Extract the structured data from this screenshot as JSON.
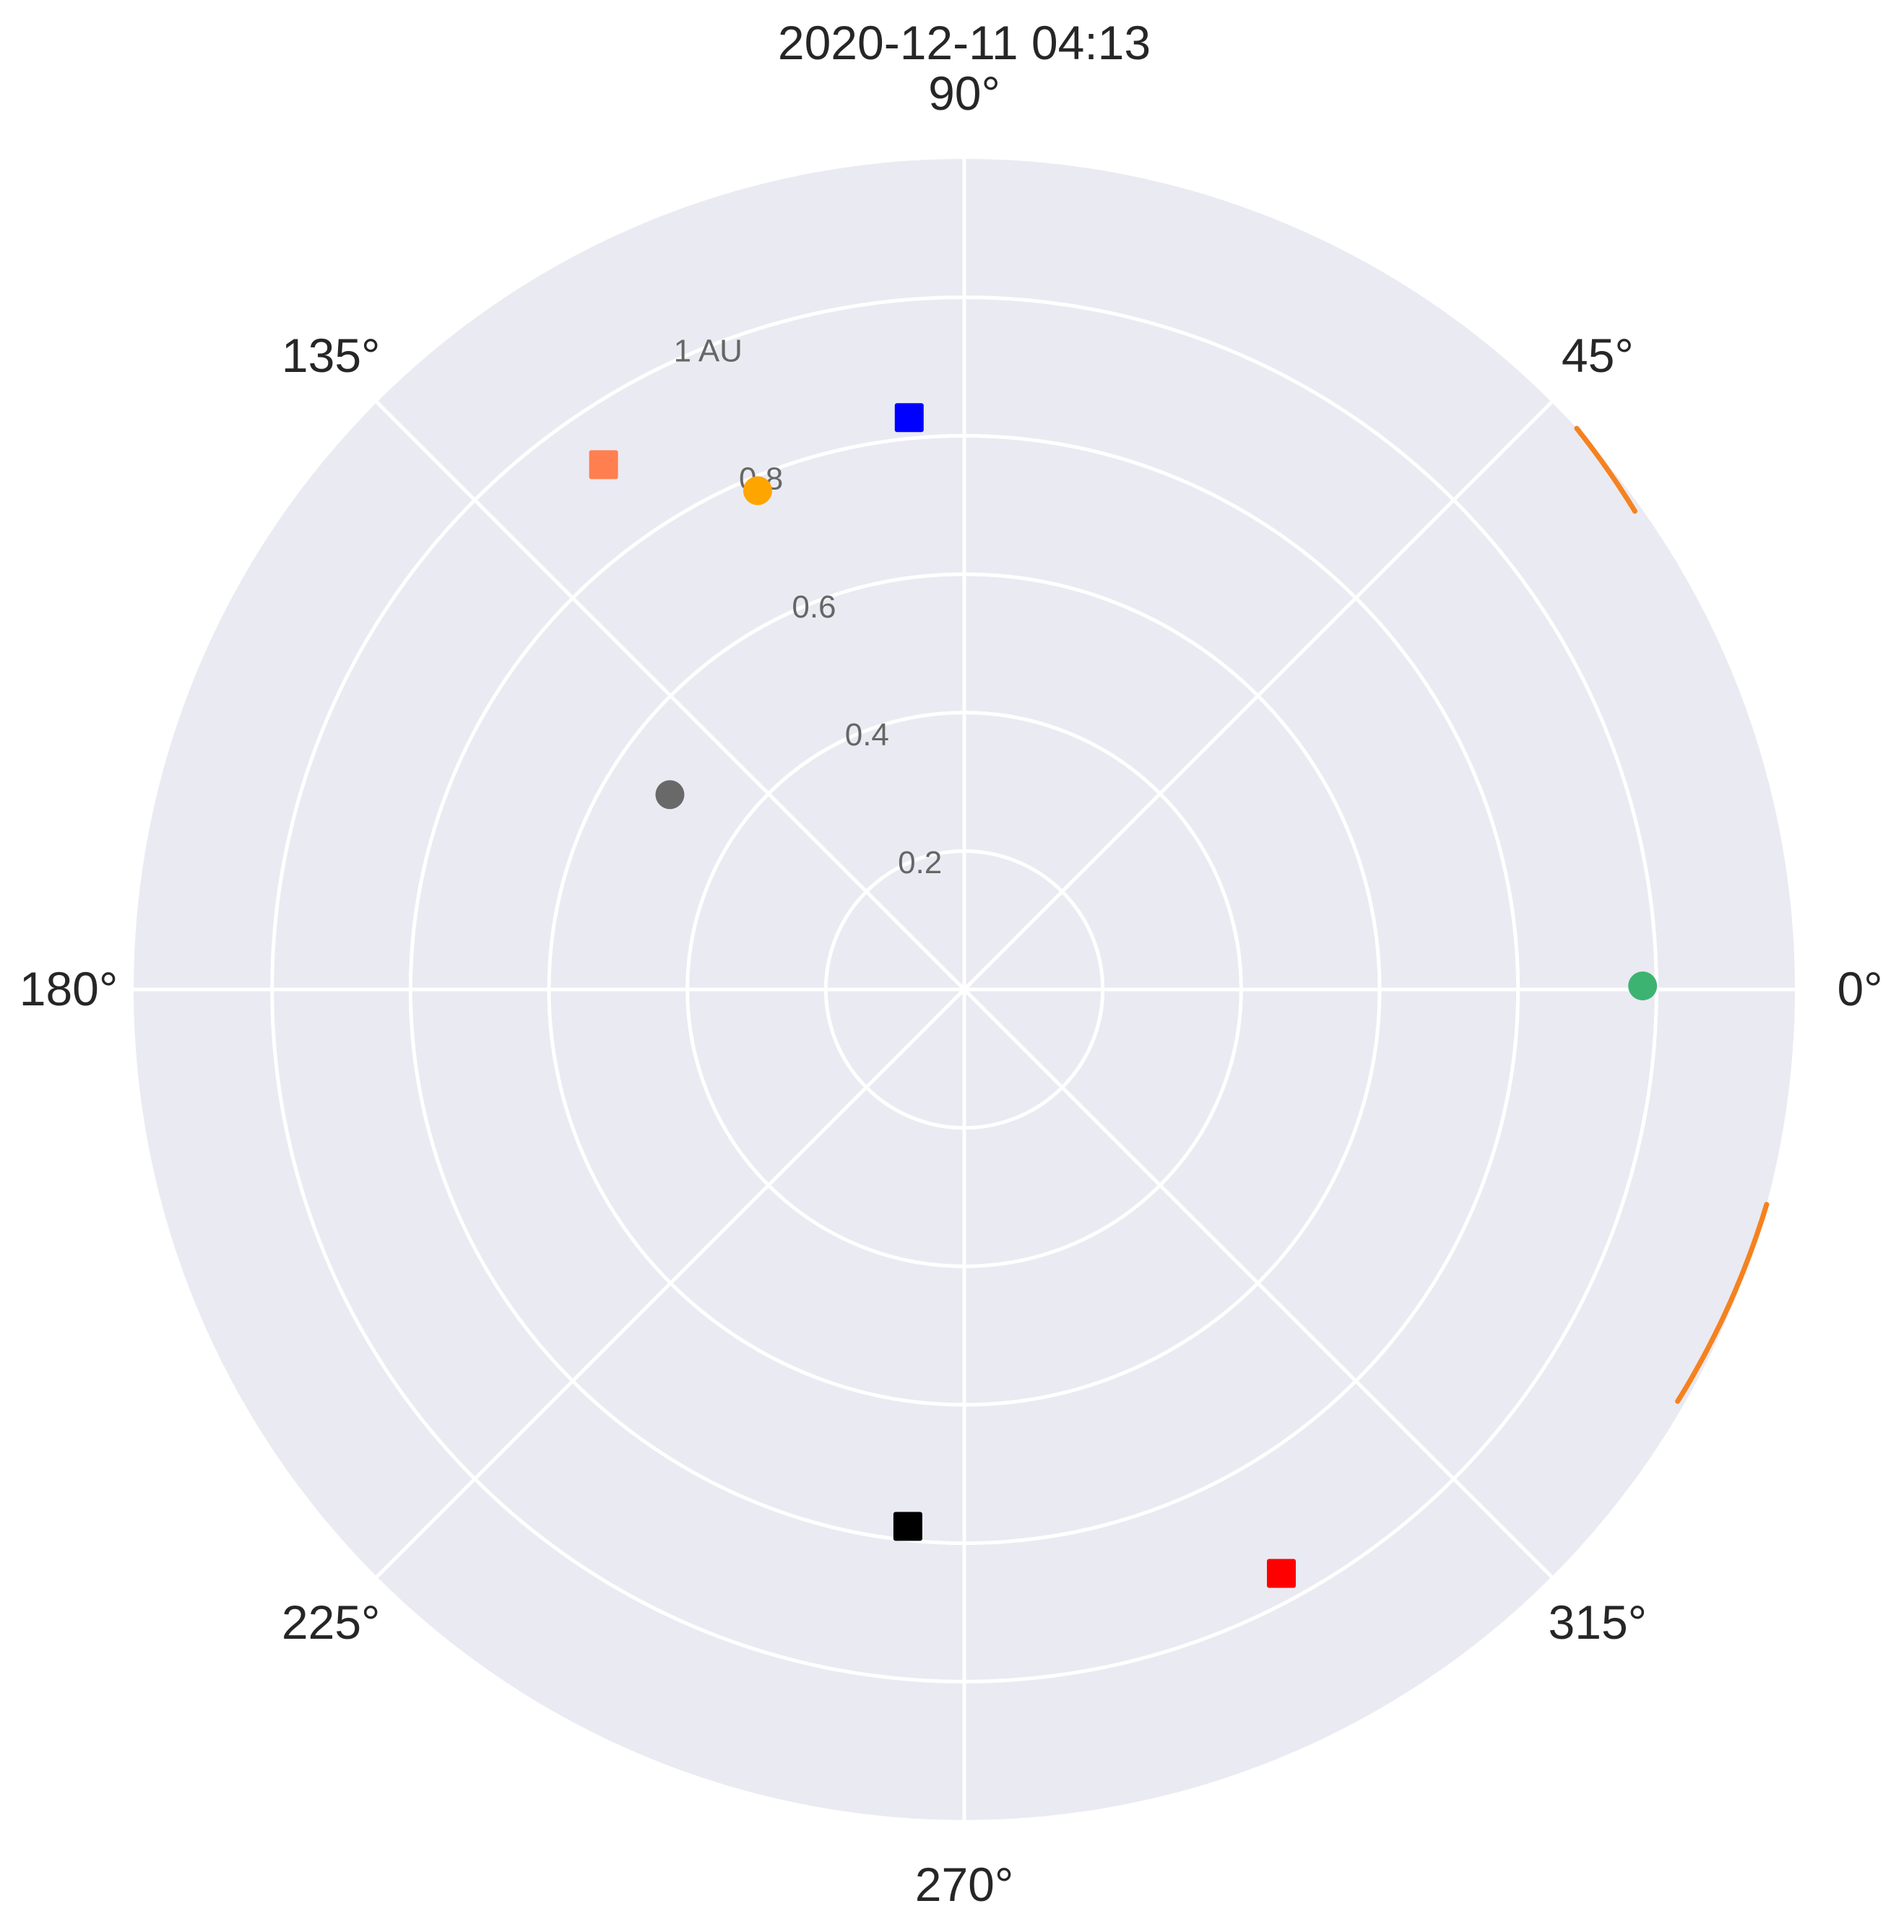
{
  "chart_data": {
    "type": "scatter",
    "coordinate_system": "polar",
    "title": "2020-12-11 04:13",
    "angle_ticks": [
      "0°",
      "45°",
      "90°",
      "135°",
      "180°",
      "225°",
      "270°",
      "315°"
    ],
    "radial_ticks": [
      "0.2",
      "0.4",
      "0.6",
      "0.8",
      "1 AU"
    ],
    "radial_tick_values": [
      0.2,
      0.4,
      0.6,
      0.8,
      1.0
    ],
    "rlim": [
      0,
      1.2
    ],
    "grid": true,
    "background_color": "#eaeaf2",
    "points": [
      {
        "angle_deg": 95.5,
        "r": 0.83,
        "marker": "square",
        "color": "#0000ff"
      },
      {
        "angle_deg": 124.5,
        "r": 0.92,
        "marker": "square",
        "color": "#ff7f50"
      },
      {
        "angle_deg": 112.5,
        "r": 0.78,
        "marker": "circle",
        "color": "#ffa500"
      },
      {
        "angle_deg": 146.5,
        "r": 0.51,
        "marker": "circle",
        "color": "#696969"
      },
      {
        "angle_deg": 0.3,
        "r": 0.98,
        "marker": "circle",
        "color": "#3cb371"
      },
      {
        "angle_deg": 264,
        "r": 0.78,
        "marker": "square",
        "color": "#000000"
      },
      {
        "angle_deg": 298.5,
        "r": 0.96,
        "marker": "square",
        "color": "#ff0000"
      }
    ],
    "arcs": [
      {
        "color": "#f5821f",
        "r_range": [
          1.19,
          1.2
        ],
        "angle_range_deg": [
          35.5,
          42.5
        ]
      },
      {
        "color": "#f5821f",
        "r_range": [
          1.19,
          1.2
        ],
        "angle_range_deg": [
          330,
          345
        ]
      }
    ]
  }
}
